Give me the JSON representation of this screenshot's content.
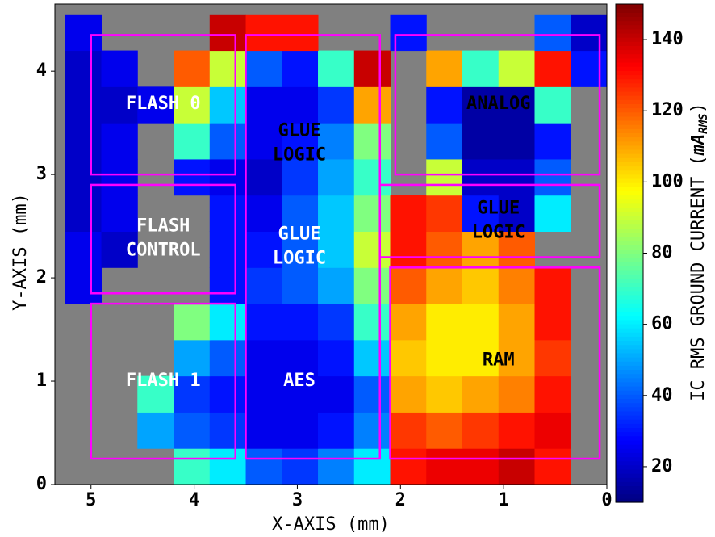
{
  "chart_data": {
    "type": "heatmap",
    "x_label": "X-AXIS (mm)",
    "y_label": "Y-AXIS (mm)",
    "colorbar_label": {
      "before": "IC RMS GROUND CURRENT (",
      "unit": "mA",
      "unit_subscript": "RMS",
      "after": ")"
    },
    "xlim": [
      5.35,
      0
    ],
    "ylim": [
      0,
      4.65
    ],
    "xticks": [
      5,
      4,
      3,
      2,
      1,
      0
    ],
    "yticks": [
      0,
      1,
      2,
      3,
      4
    ],
    "clim": [
      10,
      150
    ],
    "cticks": [
      20,
      40,
      60,
      80,
      100,
      120,
      140
    ],
    "colormap": "jet",
    "missing_color": "#808080",
    "xbins": [
      5.25,
      4.9,
      4.55,
      4.2,
      3.85,
      3.5,
      3.15,
      2.8,
      2.45,
      2.1,
      1.75,
      1.4,
      1.05,
      0.7,
      0.35,
      0
    ],
    "ybins": [
      0,
      0.35,
      0.7,
      1.05,
      1.4,
      1.75,
      2.1,
      2.45,
      2.8,
      3.15,
      3.5,
      3.85,
      4.2,
      4.55
    ],
    "values": [
      [
        null,
        null,
        null,
        70,
        60,
        40,
        35,
        45,
        60,
        130,
        135,
        135,
        140,
        130,
        null
      ],
      [
        null,
        null,
        50,
        40,
        35,
        25,
        25,
        30,
        45,
        125,
        120,
        125,
        130,
        135,
        null
      ],
      [
        null,
        null,
        70,
        35,
        30,
        25,
        25,
        25,
        40,
        110,
        105,
        110,
        115,
        130,
        null
      ],
      [
        null,
        null,
        null,
        50,
        40,
        25,
        25,
        30,
        55,
        105,
        100,
        100,
        110,
        125,
        null
      ],
      [
        null,
        null,
        null,
        80,
        60,
        30,
        30,
        35,
        70,
        110,
        100,
        100,
        110,
        130,
        null
      ],
      [
        25,
        null,
        null,
        null,
        30,
        35,
        40,
        50,
        80,
        120,
        110,
        105,
        115,
        130,
        null
      ],
      [
        25,
        20,
        null,
        null,
        30,
        30,
        40,
        55,
        90,
        130,
        120,
        110,
        120,
        null,
        null
      ],
      [
        20,
        25,
        null,
        null,
        30,
        25,
        40,
        55,
        80,
        130,
        125,
        30,
        20,
        60,
        null
      ],
      [
        20,
        25,
        null,
        30,
        25,
        20,
        35,
        50,
        70,
        null,
        90,
        20,
        20,
        40,
        null
      ],
      [
        20,
        25,
        null,
        70,
        40,
        25,
        30,
        45,
        80,
        null,
        40,
        15,
        15,
        30,
        null
      ],
      [
        20,
        20,
        25,
        90,
        55,
        25,
        25,
        35,
        110,
        null,
        30,
        15,
        15,
        70,
        null
      ],
      [
        20,
        25,
        null,
        120,
        90,
        40,
        30,
        70,
        140,
        null,
        110,
        70,
        90,
        130,
        30
      ],
      [
        25,
        null,
        null,
        null,
        140,
        130,
        130,
        null,
        null,
        30,
        null,
        null,
        null,
        40,
        20
      ]
    ],
    "box_color": "#ff00ff",
    "regions": [
      {
        "x": [
          5.0,
          3.6
        ],
        "y": [
          3.0,
          4.35
        ]
      },
      {
        "x": [
          5.0,
          3.6
        ],
        "y": [
          1.85,
          2.9
        ]
      },
      {
        "x": [
          5.0,
          3.6
        ],
        "y": [
          0.25,
          1.75
        ]
      },
      {
        "x": [
          3.5,
          2.2
        ],
        "y": [
          0.25,
          4.35
        ]
      },
      {
        "x": [
          2.05,
          0.07
        ],
        "y": [
          3.0,
          4.35
        ]
      },
      {
        "x": [
          2.2,
          0.07
        ],
        "y": [
          2.2,
          2.9
        ]
      },
      {
        "x": [
          2.1,
          0.07
        ],
        "y": [
          0.25,
          2.1
        ]
      }
    ],
    "annotations": [
      {
        "text": [
          "FLASH 0"
        ],
        "x": 4.3,
        "y": 3.68,
        "color": "#ffffff"
      },
      {
        "text": [
          "FLASH",
          "CONTROL"
        ],
        "x": 4.3,
        "y": 2.38,
        "color": "#ffffff"
      },
      {
        "text": [
          "FLASH 1"
        ],
        "x": 4.3,
        "y": 1.0,
        "color": "#ffffff"
      },
      {
        "text": [
          "GLUE",
          "LOGIC"
        ],
        "x": 2.98,
        "y": 3.3,
        "color": "#000000"
      },
      {
        "text": [
          "GLUE",
          "LOGIC"
        ],
        "x": 2.98,
        "y": 2.3,
        "color": "#ffffff"
      },
      {
        "text": [
          "AES"
        ],
        "x": 2.98,
        "y": 1.0,
        "color": "#ffffff"
      },
      {
        "text": [
          "ANALOG"
        ],
        "x": 1.05,
        "y": 3.68,
        "color": "#000000"
      },
      {
        "text": [
          "GLUE",
          "LOGIC"
        ],
        "x": 1.05,
        "y": 2.55,
        "color": "#000000"
      },
      {
        "text": [
          "RAM"
        ],
        "x": 1.05,
        "y": 1.2,
        "color": "#000000"
      }
    ]
  }
}
